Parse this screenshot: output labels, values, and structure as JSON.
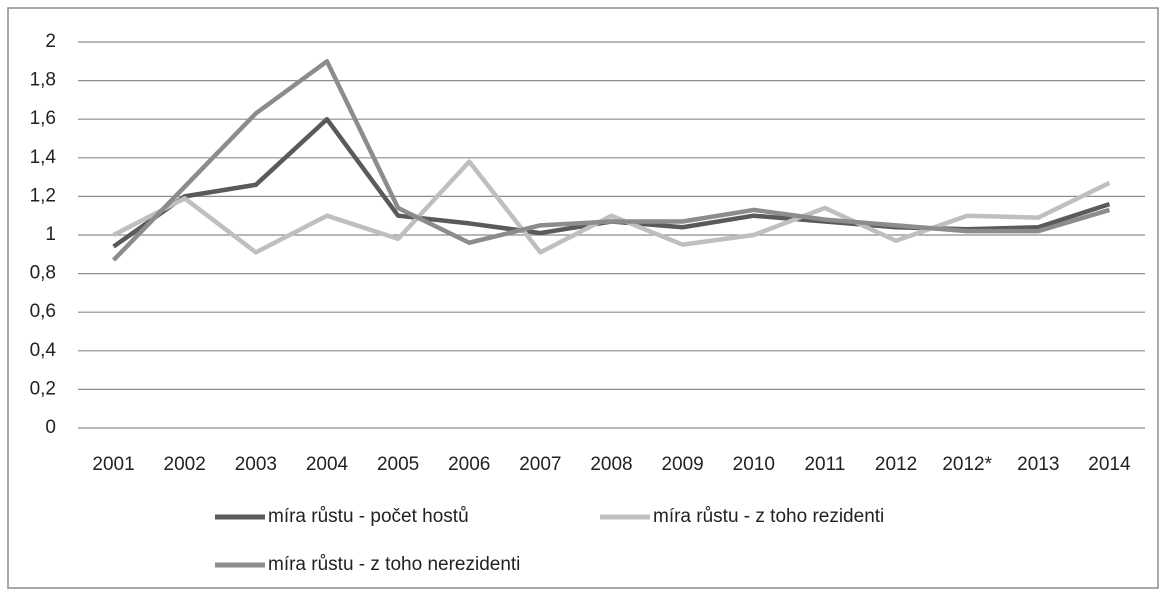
{
  "chart_data": {
    "type": "line",
    "categories": [
      "2001",
      "2002",
      "2003",
      "2004",
      "2005",
      "2006",
      "2007",
      "2008",
      "2009",
      "2010",
      "2011",
      "2012",
      "2012*",
      "2013",
      "2014"
    ],
    "series": [
      {
        "name": "míra růstu - počet hostů",
        "color": "#5a5a5a",
        "values": [
          0.94,
          1.2,
          1.26,
          1.6,
          1.1,
          1.06,
          1.01,
          1.07,
          1.04,
          1.1,
          1.07,
          1.04,
          1.03,
          1.04,
          1.16
        ]
      },
      {
        "name": "míra růstu - z toho rezidenti",
        "color": "#bfbfbf",
        "values": [
          1.0,
          1.19,
          0.91,
          1.1,
          0.98,
          1.38,
          0.91,
          1.1,
          0.95,
          1.0,
          1.14,
          0.97,
          1.1,
          1.09,
          1.27
        ]
      },
      {
        "name": "míra růstu - z toho nerezidenti",
        "color": "#8c8c8c",
        "values": [
          0.87,
          1.25,
          1.63,
          1.9,
          1.14,
          0.96,
          1.05,
          1.07,
          1.07,
          1.13,
          1.08,
          1.05,
          1.02,
          1.02,
          1.13
        ]
      }
    ],
    "ylim": [
      0,
      2
    ],
    "yticks": [
      0,
      {
        "value": 0.2,
        "label": "0,2"
      },
      {
        "value": 0.4,
        "label": "0,4"
      },
      {
        "value": 0.6,
        "label": "0,6"
      },
      {
        "value": 0.8,
        "label": "0,8"
      },
      1,
      {
        "value": 1.2,
        "label": "1,2"
      },
      {
        "value": 1.4,
        "label": "1,4"
      },
      {
        "value": 1.6,
        "label": "1,6"
      },
      {
        "value": 1.8,
        "label": "1,8"
      },
      2
    ],
    "grid": true,
    "legend": "bottom"
  }
}
